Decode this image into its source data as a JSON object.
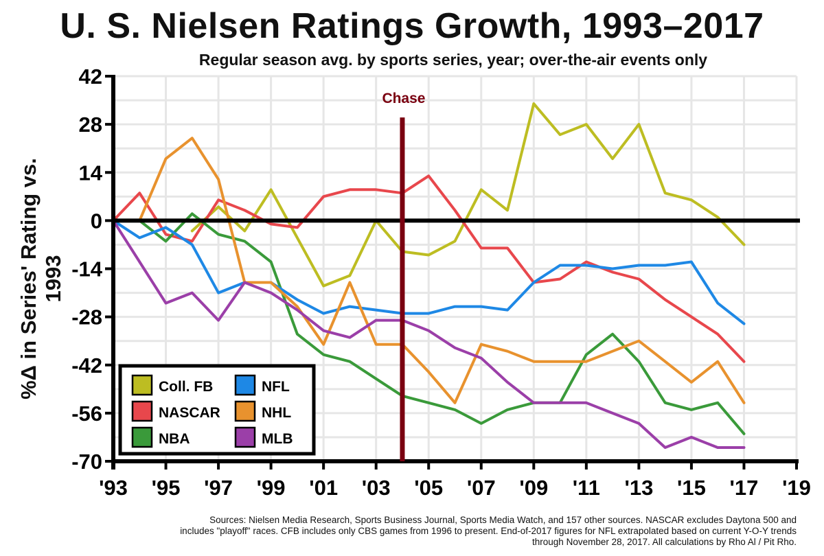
{
  "chart_data": {
    "type": "line",
    "title": "U. S. Nielsen Ratings Growth, 1993–2017",
    "subtitle": "Regular season avg. by sports series, year; over-the-air events only",
    "ylabel": "%Δ in Series' Rating vs. 1993",
    "xlabel": "",
    "xlim": [
      1993,
      2019
    ],
    "ylim": [
      -70,
      42
    ],
    "yticks": [
      42,
      28,
      14,
      0,
      -14,
      -28,
      -42,
      -56,
      -70
    ],
    "ytick_labels": [
      "42",
      "28",
      "14",
      "0",
      "-14",
      "-28",
      "-42",
      "-56",
      "-70"
    ],
    "xticks": [
      1993,
      1995,
      1997,
      1999,
      2001,
      2003,
      2005,
      2007,
      2009,
      2011,
      2013,
      2015,
      2017,
      2019
    ],
    "xtick_labels": [
      "'93",
      "'95",
      "'97",
      "'99",
      "'01",
      "'03",
      "'05",
      "'07",
      "'09",
      "'11",
      "'13",
      "'15",
      "'17",
      "'19"
    ],
    "grid": true,
    "legend_position": "bottom-left",
    "annotation": {
      "label": "Chase",
      "x": 2004,
      "color": "#7a0010"
    },
    "series": [
      {
        "name": "Coll. FB",
        "color": "#bdbd22",
        "x": [
          1996,
          1997,
          1998,
          1999,
          2000,
          2001,
          2002,
          2003,
          2004,
          2005,
          2006,
          2007,
          2008,
          2009,
          2010,
          2011,
          2012,
          2013,
          2014,
          2015,
          2016,
          2017
        ],
        "values": [
          -3,
          4,
          -3,
          9,
          -5,
          -19,
          -16,
          0,
          -9,
          -10,
          -6,
          9,
          3,
          34,
          25,
          28,
          18,
          28,
          8,
          6,
          1,
          -7
        ]
      },
      {
        "name": "NASCAR",
        "color": "#e8474c",
        "x": [
          1993,
          1994,
          1995,
          1996,
          1997,
          1998,
          1999,
          2000,
          2001,
          2002,
          2003,
          2004,
          2005,
          2006,
          2007,
          2008,
          2009,
          2010,
          2011,
          2012,
          2013,
          2014,
          2015,
          2016,
          2017
        ],
        "values": [
          0,
          8,
          -4,
          -6,
          6,
          3,
          -1,
          -2,
          7,
          9,
          9,
          8,
          13,
          3,
          -8,
          -8,
          -18,
          -17,
          -12,
          -15,
          -17,
          -23,
          -28,
          -33,
          -41
        ]
      },
      {
        "name": "NBA",
        "color": "#3a9a3a",
        "x": [
          1993,
          1994,
          1995,
          1996,
          1997,
          1998,
          1999,
          2000,
          2001,
          2002,
          2003,
          2004,
          2005,
          2006,
          2007,
          2008,
          2009,
          2010,
          2011,
          2012,
          2013,
          2014,
          2015,
          2016,
          2017
        ],
        "values": [
          0,
          0,
          -6,
          2,
          -4,
          -6,
          -12,
          -33,
          -39,
          -41,
          -46,
          -51,
          -53,
          -55,
          -59,
          -55,
          -53,
          -53,
          -39,
          -33,
          -41,
          -53,
          -55,
          -53,
          -62
        ]
      },
      {
        "name": "NFL",
        "color": "#1e88e5",
        "x": [
          1993,
          1994,
          1995,
          1996,
          1997,
          1998,
          1999,
          2000,
          2001,
          2002,
          2003,
          2004,
          2005,
          2006,
          2007,
          2008,
          2009,
          2010,
          2011,
          2012,
          2013,
          2014,
          2015,
          2016,
          2017
        ],
        "values": [
          0,
          -5,
          -2,
          -7,
          -21,
          -18,
          -18,
          -23,
          -27,
          -25,
          -26,
          -27,
          -27,
          -25,
          -25,
          -26,
          -18,
          -13,
          -13,
          -14,
          -13,
          -13,
          -12,
          -24,
          -30
        ]
      },
      {
        "name": "NHL",
        "color": "#e8922e",
        "x": [
          1993,
          1994,
          1995,
          1996,
          1997,
          1998,
          1999,
          2000,
          2001,
          2002,
          2003,
          2004,
          2005,
          2006,
          2007,
          2008,
          2009,
          2010,
          2011,
          2012,
          2013,
          2014,
          2015,
          2016,
          2017
        ],
        "values": [
          0,
          0,
          18,
          24,
          12,
          -18,
          -18,
          -25,
          -36,
          -18,
          -36,
          -36,
          -44,
          -53,
          -36,
          -38,
          -41,
          -41,
          -41,
          -38,
          -35,
          -41,
          -47,
          -41,
          -53
        ]
      },
      {
        "name": "MLB",
        "color": "#9b3fa8",
        "x": [
          1993,
          1994,
          1995,
          1996,
          1997,
          1998,
          1999,
          2000,
          2001,
          2002,
          2003,
          2004,
          2005,
          2006,
          2007,
          2008,
          2009,
          2010,
          2011,
          2012,
          2013,
          2014,
          2015,
          2016,
          2017
        ],
        "values": [
          0,
          -12,
          -24,
          -21,
          -29,
          -18,
          -21,
          -26,
          -32,
          -34,
          -29,
          -29,
          -32,
          -37,
          -40,
          -47,
          -53,
          -53,
          -53,
          -56,
          -59,
          -66,
          -63,
          -66,
          -66
        ]
      }
    ],
    "sources": "Sources: Nielsen Media Research, Sports Business Journal, Sports Media Watch, and 157 other sources. NASCAR excludes Daytona 500 and includes \"playoff\" races. CFB includes only CBS games from 1996 to present. End-of-2017 figures for NFL extrapolated based on current Y-O-Y trends through November 28, 2017. All calculations by Rho Al / Pit Rho."
  }
}
